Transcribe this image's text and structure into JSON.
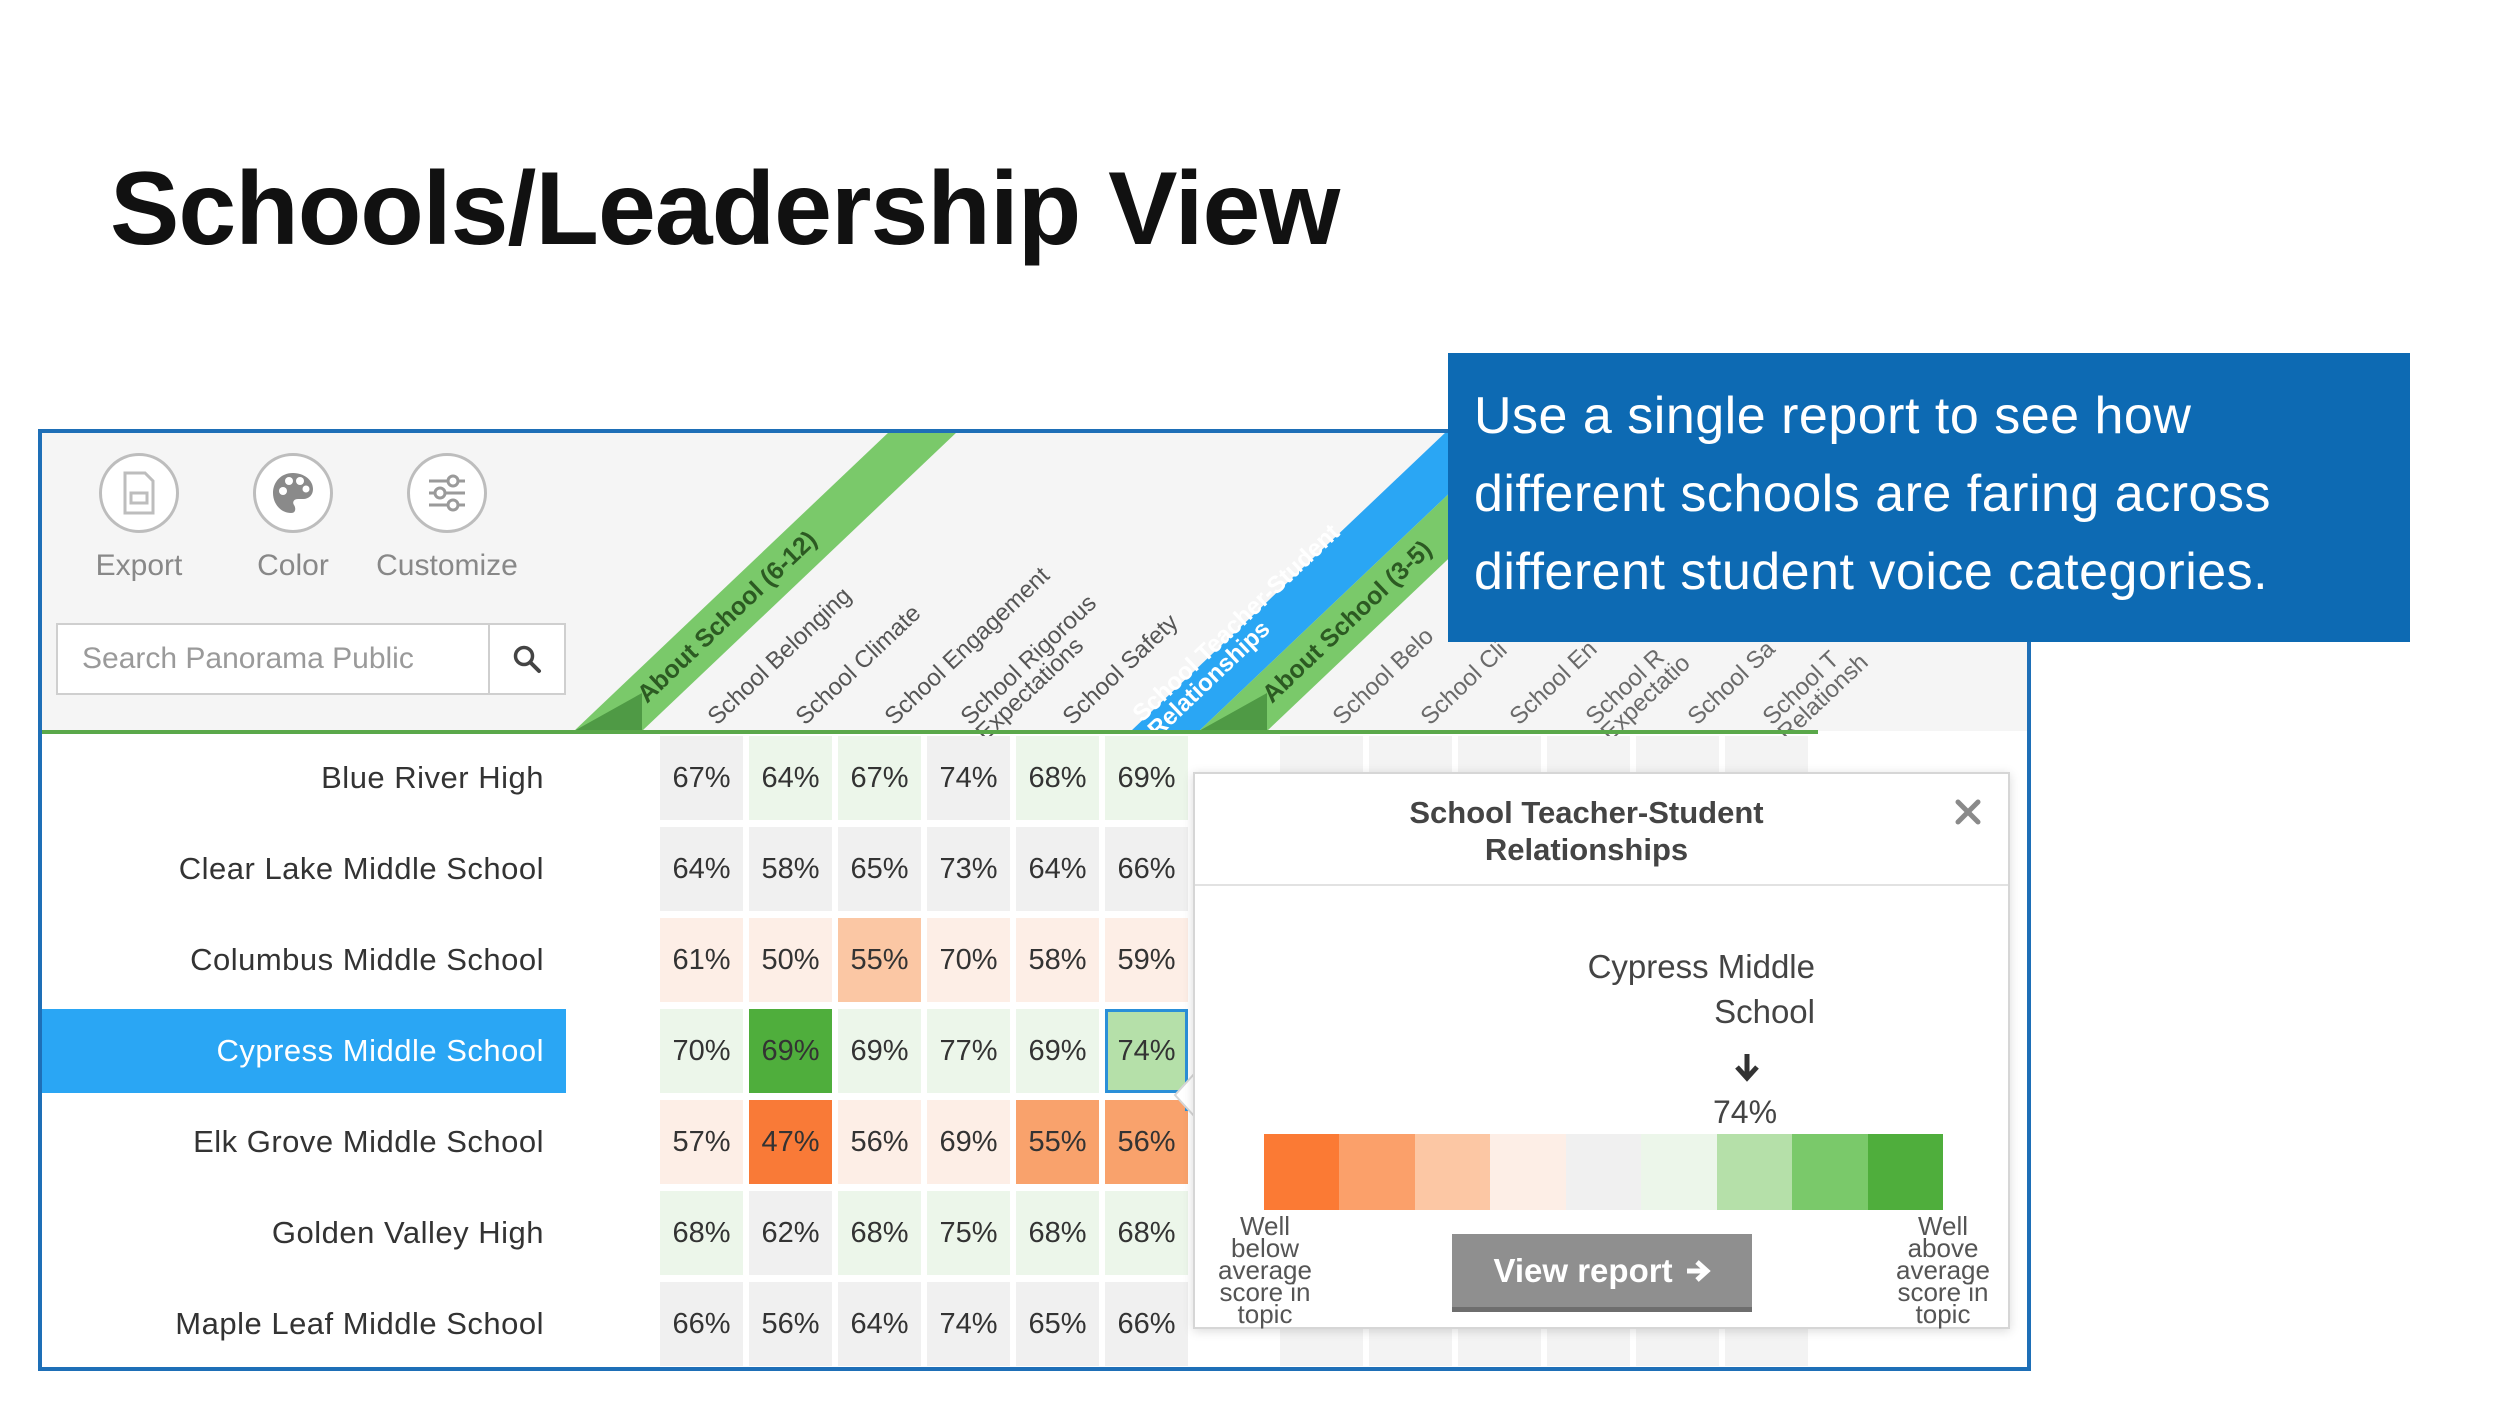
{
  "slide": {
    "title": "Schools/Leadership View",
    "callout": "Use a single report to see how different schools are faring across different student voice categories."
  },
  "toolbar": {
    "export_label": "Export",
    "color_label": "Color",
    "customize_label": "Customize",
    "search_placeholder": "Search Panorama Public"
  },
  "colors": {
    "frame_blue": "#1e6fb7",
    "about_school_612_green": "#7ac96a",
    "teacher_student_blue": "#2aa6f4",
    "selected_row_blue": "#2aa6f4",
    "callout_blue": "#0d6ab3"
  },
  "header": {
    "group_about_612": "About School (6-12)",
    "group_teacher_student": "School Teacher-Student Relationships",
    "group_about_35": "About School (3-5)",
    "columns": [
      "School Belonging",
      "School Climate",
      "School Engagement",
      "School Rigorous Expectations",
      "School Safety"
    ],
    "columns_faded": [
      "School Belo",
      "School Cli",
      "School En",
      "School R Expectatio",
      "School Sa",
      "School T Relationsh"
    ]
  },
  "table": {
    "rows": [
      {
        "school": "Blue River High",
        "values": [
          "67%",
          "64%",
          "67%",
          "74%",
          "68%",
          "69%"
        ],
        "colors": [
          "#f0f0f0",
          "#ecf6ea",
          "#ecf6ea",
          "#f0f0f0",
          "#ecf6ea",
          "#ecf6ea"
        ]
      },
      {
        "school": "Clear Lake Middle School",
        "values": [
          "64%",
          "58%",
          "65%",
          "73%",
          "64%",
          "66%"
        ],
        "colors": [
          "#f0f0f0",
          "#f0f0f0",
          "#f0f0f0",
          "#f0f0f0",
          "#f0f0f0",
          "#f0f0f0"
        ]
      },
      {
        "school": "Columbus Middle School",
        "values": [
          "61%",
          "50%",
          "55%",
          "70%",
          "58%",
          "59%"
        ],
        "colors": [
          "#fdeee6",
          "#fdeee6",
          "#fbc7a4",
          "#fdeee6",
          "#fdeee6",
          "#fdeee6"
        ]
      },
      {
        "school": "Cypress Middle School",
        "values": [
          "70%",
          "69%",
          "69%",
          "77%",
          "69%",
          "74%"
        ],
        "colors": [
          "#ecf6ea",
          "#4fae3c",
          "#ecf6ea",
          "#ecf6ea",
          "#ecf6ea",
          "#b5e0a9"
        ]
      },
      {
        "school": "Elk Grove Middle School",
        "values": [
          "57%",
          "47%",
          "56%",
          "69%",
          "55%",
          "56%"
        ],
        "colors": [
          "#fdeee6",
          "#f97a37",
          "#fdeee6",
          "#fdeee6",
          "#f9a26c",
          "#f9a26c"
        ]
      },
      {
        "school": "Golden Valley High",
        "values": [
          "68%",
          "62%",
          "68%",
          "75%",
          "68%",
          "68%"
        ],
        "colors": [
          "#ecf6ea",
          "#f0f0f0",
          "#ecf6ea",
          "#ecf6ea",
          "#ecf6ea",
          "#ecf6ea"
        ]
      },
      {
        "school": "Maple Leaf Middle School",
        "values": [
          "66%",
          "56%",
          "64%",
          "74%",
          "65%",
          "66%"
        ],
        "colors": [
          "#f0f0f0",
          "#f0f0f0",
          "#f0f0f0",
          "#f0f0f0",
          "#f0f0f0",
          "#f0f0f0"
        ]
      }
    ]
  },
  "selection": {
    "row": "Cypress Middle School",
    "column": "School Teacher-Student Relationships"
  },
  "popup": {
    "title_line1": "School Teacher-Student",
    "title_line2": "Relationships",
    "school_line1": "Cypress Middle",
    "school_line2": "School",
    "score": "74%",
    "scale_colors": [
      "#fb7a34",
      "#fba06a",
      "#fcc7a4",
      "#fdeee6",
      "#f0f0f0",
      "#ecf6ea",
      "#b5e0a9",
      "#7ac96a",
      "#4fae3c"
    ],
    "left_label": [
      "Well",
      "below",
      "average",
      "score in",
      "topic"
    ],
    "right_label": [
      "Well",
      "above",
      "average",
      "score in",
      "topic"
    ],
    "button_label": "View report"
  }
}
